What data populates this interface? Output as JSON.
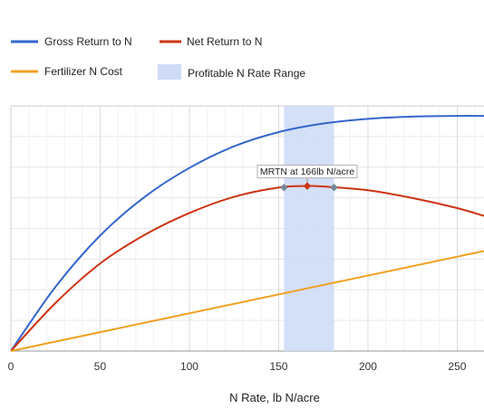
{
  "chart_data": {
    "type": "line",
    "xlabel": "N Rate, lb N/acre",
    "ylabel": "",
    "xlim": [
      0,
      265
    ],
    "ylim": [
      0,
      1.0
    ],
    "x_ticks": [
      "0",
      "50",
      "100",
      "150",
      "200",
      "250"
    ],
    "grid": true,
    "legend_position": "top",
    "series": [
      {
        "name": "Gross Return to N",
        "color": "#3366cc",
        "x": [
          0,
          25,
          50,
          75,
          100,
          125,
          150,
          175,
          200,
          225,
          250,
          265
        ],
        "y": [
          0,
          0.262,
          0.471,
          0.629,
          0.747,
          0.835,
          0.893,
          0.928,
          0.947,
          0.956,
          0.959,
          0.959
        ]
      },
      {
        "name": "Net Return to N",
        "color": "#cc3311",
        "x": [
          0,
          25,
          50,
          75,
          100,
          125,
          150,
          166,
          175,
          200,
          225,
          250,
          265
        ],
        "y": [
          0,
          0.196,
          0.357,
          0.474,
          0.563,
          0.629,
          0.667,
          0.673,
          0.671,
          0.656,
          0.624,
          0.583,
          0.551
        ]
      },
      {
        "name": "Fertilizer N Cost",
        "color": "#f0a020",
        "x": [
          0,
          265
        ],
        "y": [
          0,
          0.408
        ]
      }
    ],
    "range": {
      "name": "Profitable N Rate Range",
      "color": "#cfdcf7",
      "x_start": 153,
      "x_end": 181
    },
    "points": [
      {
        "x": 153,
        "y": 0.667,
        "color": "#778899"
      },
      {
        "x": 166,
        "y": 0.673,
        "color": "#cc3311"
      },
      {
        "x": 181,
        "y": 0.667,
        "color": "#778899"
      }
    ],
    "annotation": {
      "text": "MRTN at 166lb N/acre",
      "x": 166,
      "y": 0.673
    }
  }
}
